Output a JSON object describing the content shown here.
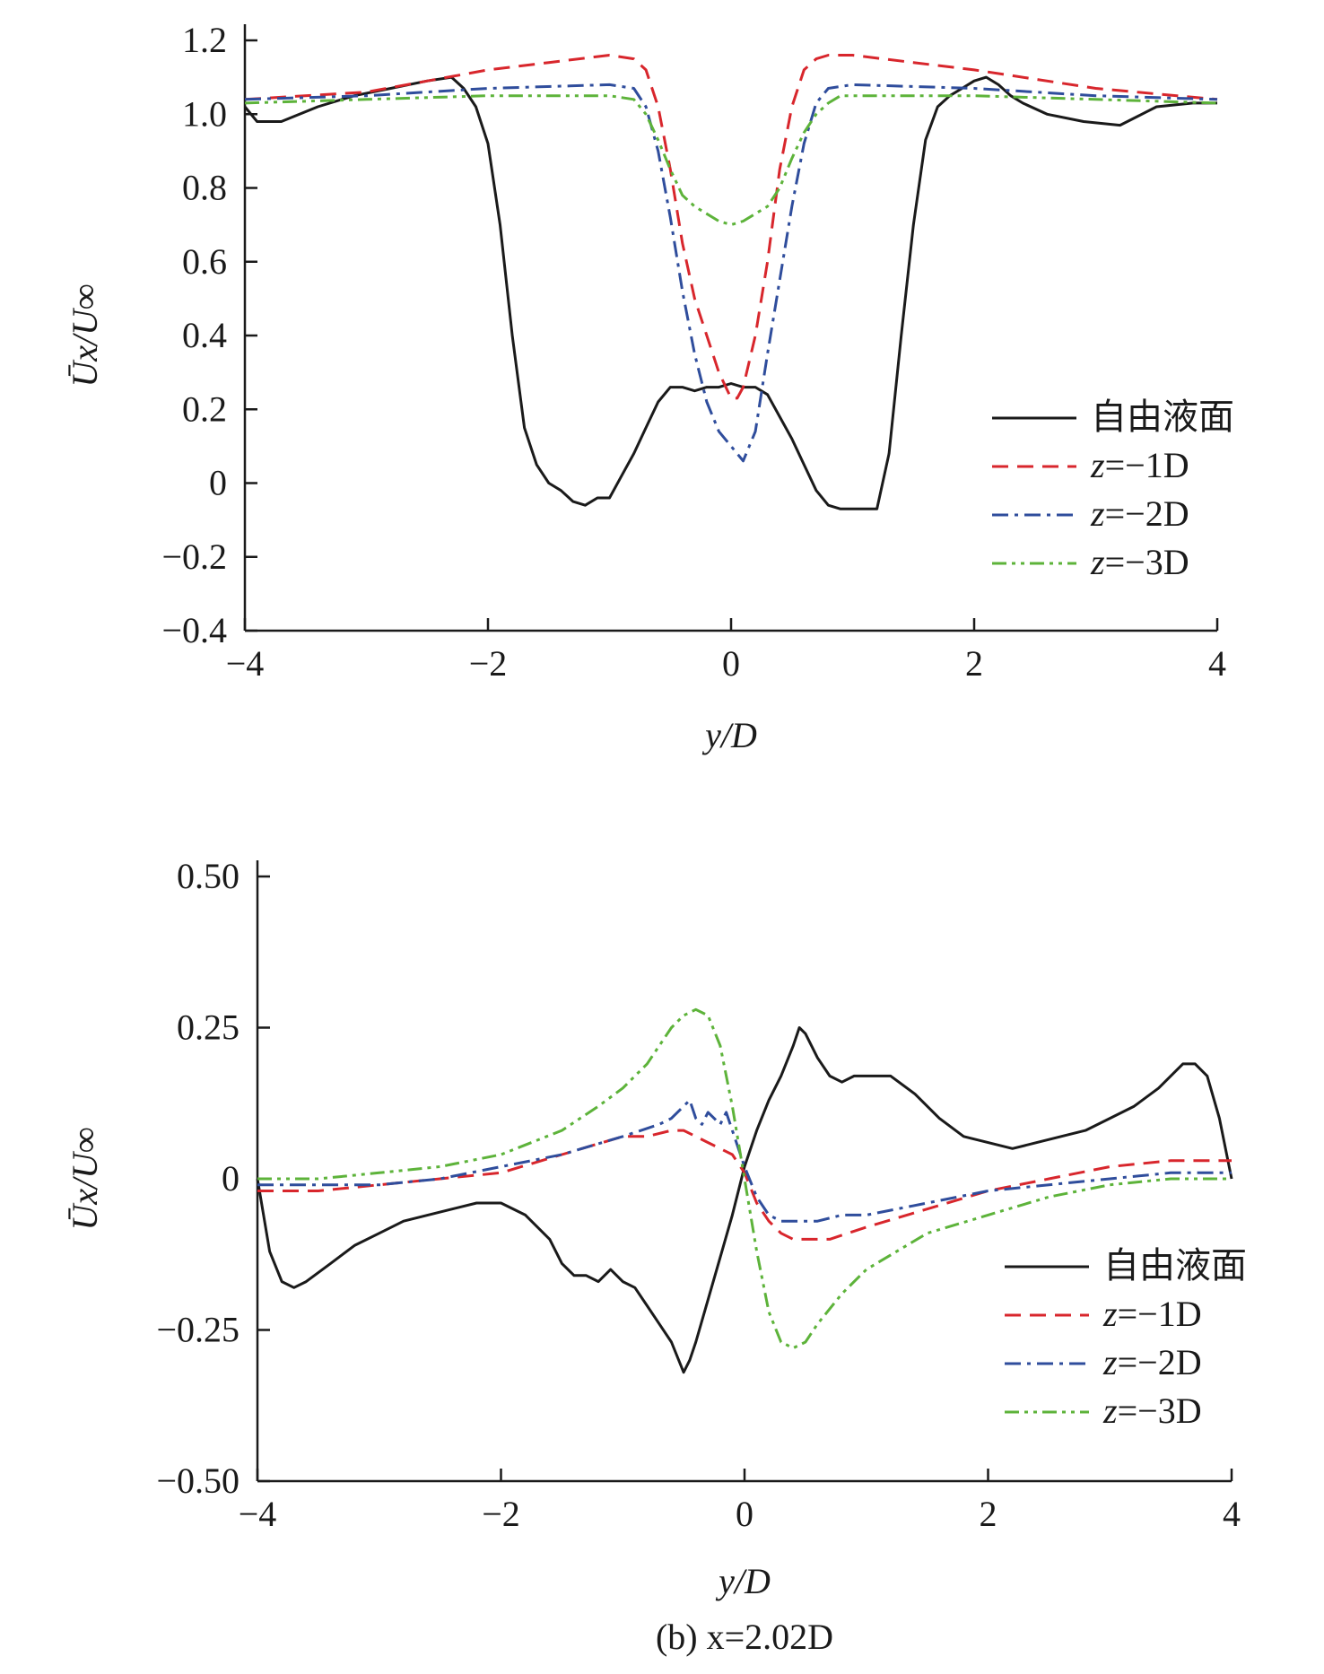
{
  "chart_data": [
    {
      "type": "line",
      "xlabel": "y/D",
      "ylabel": "Ūx/U∞",
      "xlim": [
        -4,
        4
      ],
      "ylim": [
        -0.4,
        1.2
      ],
      "xticks": [
        "−4",
        "−2",
        "0",
        "2",
        "4"
      ],
      "yticks": [
        "−0.4",
        "−0.2",
        "0",
        "0.2",
        "0.4",
        "0.6",
        "0.8",
        "1.0",
        "1.2"
      ],
      "legend_position": "lower-right",
      "series": [
        {
          "name": "自由液面",
          "color": "#1a1a1a",
          "dash": "solid",
          "x": [
            -4.0,
            -3.9,
            -3.7,
            -3.4,
            -3.1,
            -2.8,
            -2.5,
            -2.3,
            -2.2,
            -2.1,
            -2.0,
            -1.9,
            -1.8,
            -1.7,
            -1.6,
            -1.5,
            -1.4,
            -1.3,
            -1.2,
            -1.1,
            -1.0,
            -0.9,
            -0.8,
            -0.7,
            -0.6,
            -0.5,
            -0.4,
            -0.3,
            -0.2,
            -0.1,
            0.0,
            0.1,
            0.2,
            0.3,
            0.4,
            0.5,
            0.6,
            0.7,
            0.8,
            0.9,
            1.0,
            1.1,
            1.2,
            1.3,
            1.4,
            1.5,
            1.6,
            1.7,
            1.8,
            1.9,
            2.0,
            2.1,
            2.2,
            2.3,
            2.4,
            2.6,
            2.9,
            3.2,
            3.5,
            3.8,
            3.9,
            4.0
          ],
          "y": [
            1.02,
            0.98,
            0.98,
            1.02,
            1.05,
            1.07,
            1.09,
            1.1,
            1.07,
            1.02,
            0.92,
            0.7,
            0.4,
            0.15,
            0.05,
            0.0,
            -0.02,
            -0.05,
            -0.06,
            -0.04,
            -0.04,
            0.02,
            0.08,
            0.15,
            0.22,
            0.26,
            0.26,
            0.25,
            0.26,
            0.26,
            0.27,
            0.26,
            0.26,
            0.24,
            0.18,
            0.12,
            0.05,
            -0.02,
            -0.06,
            -0.07,
            -0.07,
            -0.07,
            -0.07,
            0.08,
            0.4,
            0.7,
            0.93,
            1.02,
            1.05,
            1.07,
            1.09,
            1.1,
            1.08,
            1.05,
            1.03,
            1.0,
            0.98,
            0.97,
            1.02,
            1.03,
            1.03,
            1.03
          ]
        },
        {
          "name": "z=−1D",
          "color": "#d8262c",
          "dash": "dashed",
          "x": [
            -4.0,
            -3.0,
            -2.0,
            -1.5,
            -1.0,
            -0.8,
            -0.7,
            -0.6,
            -0.5,
            -0.4,
            -0.3,
            -0.2,
            -0.1,
            0.0,
            0.05,
            0.1,
            0.2,
            0.3,
            0.4,
            0.5,
            0.6,
            0.7,
            0.8,
            1.0,
            1.5,
            2.0,
            3.0,
            4.0
          ],
          "y": [
            1.04,
            1.06,
            1.12,
            1.14,
            1.16,
            1.15,
            1.12,
            1.02,
            0.85,
            0.65,
            0.5,
            0.4,
            0.3,
            0.23,
            0.23,
            0.26,
            0.4,
            0.6,
            0.85,
            1.02,
            1.12,
            1.15,
            1.16,
            1.16,
            1.14,
            1.12,
            1.07,
            1.04
          ]
        },
        {
          "name": "z=−2D",
          "color": "#2f4d9c",
          "dash": "dashdot",
          "x": [
            -4.0,
            -3.0,
            -2.0,
            -1.0,
            -0.8,
            -0.7,
            -0.6,
            -0.5,
            -0.4,
            -0.3,
            -0.2,
            -0.1,
            0.0,
            0.1,
            0.2,
            0.3,
            0.4,
            0.5,
            0.6,
            0.7,
            0.8,
            1.0,
            2.0,
            3.0,
            4.0
          ],
          "y": [
            1.04,
            1.05,
            1.07,
            1.08,
            1.07,
            1.02,
            0.9,
            0.72,
            0.52,
            0.35,
            0.22,
            0.14,
            0.1,
            0.06,
            0.14,
            0.35,
            0.55,
            0.75,
            0.92,
            1.03,
            1.07,
            1.08,
            1.07,
            1.05,
            1.04
          ]
        },
        {
          "name": "z=−3D",
          "color": "#5db33a",
          "dash": "dashdotdot",
          "x": [
            -4.0,
            -3.0,
            -2.0,
            -1.0,
            -0.8,
            -0.7,
            -0.6,
            -0.5,
            -0.4,
            -0.3,
            -0.2,
            -0.1,
            0.0,
            0.1,
            0.2,
            0.3,
            0.4,
            0.5,
            0.6,
            0.7,
            0.8,
            0.9,
            1.0,
            2.0,
            3.0,
            4.0
          ],
          "y": [
            1.03,
            1.04,
            1.05,
            1.05,
            1.04,
            1.0,
            0.93,
            0.85,
            0.78,
            0.75,
            0.73,
            0.71,
            0.7,
            0.71,
            0.73,
            0.75,
            0.8,
            0.88,
            0.95,
            1.0,
            1.03,
            1.05,
            1.05,
            1.05,
            1.04,
            1.03
          ]
        }
      ],
      "legend_labels": [
        {
          "prefix": "自由液面",
          "suffix": ""
        },
        {
          "prefix": "z",
          "suffix": "=−1D"
        },
        {
          "prefix": "z",
          "suffix": "=−2D"
        },
        {
          "prefix": "z",
          "suffix": "=−3D"
        }
      ]
    },
    {
      "type": "line",
      "xlabel": "y/D",
      "ylabel": "Ūx/U∞",
      "xlim": [
        -4,
        4
      ],
      "ylim": [
        -0.5,
        0.5
      ],
      "xticks": [
        "−4",
        "−2",
        "0",
        "2",
        "4"
      ],
      "yticks": [
        "−0.50",
        "−0.25",
        "0",
        "0.25",
        "0.50"
      ],
      "legend_position": "lower-right",
      "caption": "(b) x=2.02D",
      "series": [
        {
          "name": "自由液面",
          "color": "#1a1a1a",
          "dash": "solid",
          "x": [
            -4.0,
            -3.95,
            -3.9,
            -3.8,
            -3.7,
            -3.6,
            -3.4,
            -3.2,
            -3.0,
            -2.8,
            -2.6,
            -2.4,
            -2.2,
            -2.0,
            -1.8,
            -1.6,
            -1.5,
            -1.4,
            -1.3,
            -1.2,
            -1.1,
            -1.0,
            -0.9,
            -0.8,
            -0.7,
            -0.6,
            -0.5,
            -0.45,
            -0.4,
            -0.3,
            -0.2,
            -0.1,
            0.0,
            0.1,
            0.2,
            0.3,
            0.4,
            0.45,
            0.5,
            0.6,
            0.7,
            0.8,
            0.9,
            1.0,
            1.2,
            1.4,
            1.6,
            1.8,
            2.0,
            2.2,
            2.4,
            2.6,
            2.8,
            3.0,
            3.2,
            3.4,
            3.6,
            3.7,
            3.8,
            3.9,
            4.0
          ],
          "y": [
            0.0,
            -0.06,
            -0.12,
            -0.17,
            -0.18,
            -0.17,
            -0.14,
            -0.11,
            -0.09,
            -0.07,
            -0.06,
            -0.05,
            -0.04,
            -0.04,
            -0.06,
            -0.1,
            -0.14,
            -0.16,
            -0.16,
            -0.17,
            -0.15,
            -0.17,
            -0.18,
            -0.21,
            -0.24,
            -0.27,
            -0.32,
            -0.3,
            -0.27,
            -0.2,
            -0.13,
            -0.06,
            0.02,
            0.08,
            0.13,
            0.17,
            0.22,
            0.25,
            0.24,
            0.2,
            0.17,
            0.16,
            0.17,
            0.17,
            0.17,
            0.14,
            0.1,
            0.07,
            0.06,
            0.05,
            0.06,
            0.07,
            0.08,
            0.1,
            0.12,
            0.15,
            0.19,
            0.19,
            0.17,
            0.1,
            0.0
          ]
        },
        {
          "name": "z=−1D",
          "color": "#d8262c",
          "dash": "dashed",
          "x": [
            -4.0,
            -3.5,
            -3.0,
            -2.5,
            -2.0,
            -1.5,
            -1.0,
            -0.8,
            -0.6,
            -0.5,
            -0.4,
            -0.3,
            -0.2,
            -0.1,
            0.0,
            0.1,
            0.2,
            0.3,
            0.4,
            0.5,
            0.7,
            1.0,
            1.5,
            2.0,
            2.5,
            3.0,
            3.5,
            4.0
          ],
          "y": [
            -0.02,
            -0.02,
            -0.01,
            0.0,
            0.01,
            0.04,
            0.07,
            0.07,
            0.08,
            0.08,
            0.07,
            0.06,
            0.05,
            0.04,
            0.01,
            -0.04,
            -0.07,
            -0.09,
            -0.1,
            -0.1,
            -0.1,
            -0.08,
            -0.05,
            -0.02,
            0.0,
            0.02,
            0.03,
            0.03
          ]
        },
        {
          "name": "z=−2D",
          "color": "#2f4d9c",
          "dash": "dashdot",
          "x": [
            -4.0,
            -3.5,
            -3.0,
            -2.5,
            -2.0,
            -1.5,
            -1.0,
            -0.7,
            -0.6,
            -0.5,
            -0.45,
            -0.4,
            -0.35,
            -0.3,
            -0.25,
            -0.2,
            -0.15,
            -0.1,
            0.0,
            0.1,
            0.2,
            0.3,
            0.4,
            0.6,
            0.8,
            1.0,
            1.5,
            2.0,
            2.5,
            3.0,
            3.5,
            4.0
          ],
          "y": [
            -0.01,
            -0.01,
            -0.01,
            0.0,
            0.02,
            0.04,
            0.07,
            0.09,
            0.1,
            0.12,
            0.13,
            0.1,
            0.09,
            0.11,
            0.1,
            0.09,
            0.11,
            0.08,
            0.02,
            -0.03,
            -0.06,
            -0.07,
            -0.07,
            -0.07,
            -0.06,
            -0.06,
            -0.04,
            -0.02,
            -0.01,
            0.0,
            0.01,
            0.01
          ]
        },
        {
          "name": "z=−3D",
          "color": "#5db33a",
          "dash": "dashdotdot",
          "x": [
            -4.0,
            -3.5,
            -3.0,
            -2.5,
            -2.0,
            -1.5,
            -1.2,
            -1.0,
            -0.8,
            -0.6,
            -0.5,
            -0.4,
            -0.3,
            -0.2,
            -0.1,
            0.0,
            0.1,
            0.2,
            0.3,
            0.4,
            0.5,
            0.6,
            0.8,
            1.0,
            1.5,
            2.0,
            2.5,
            3.0,
            3.5,
            4.0
          ],
          "y": [
            0.0,
            0.0,
            0.01,
            0.02,
            0.04,
            0.08,
            0.12,
            0.15,
            0.19,
            0.25,
            0.27,
            0.28,
            0.27,
            0.22,
            0.12,
            0.0,
            -0.12,
            -0.22,
            -0.27,
            -0.28,
            -0.27,
            -0.24,
            -0.19,
            -0.15,
            -0.09,
            -0.06,
            -0.03,
            -0.01,
            0.0,
            0.0
          ]
        }
      ],
      "legend_labels": [
        {
          "prefix": "自由液面",
          "suffix": ""
        },
        {
          "prefix": "z",
          "suffix": "=−1D"
        },
        {
          "prefix": "z",
          "suffix": "=−2D"
        },
        {
          "prefix": "z",
          "suffix": "=−3D"
        }
      ]
    }
  ]
}
